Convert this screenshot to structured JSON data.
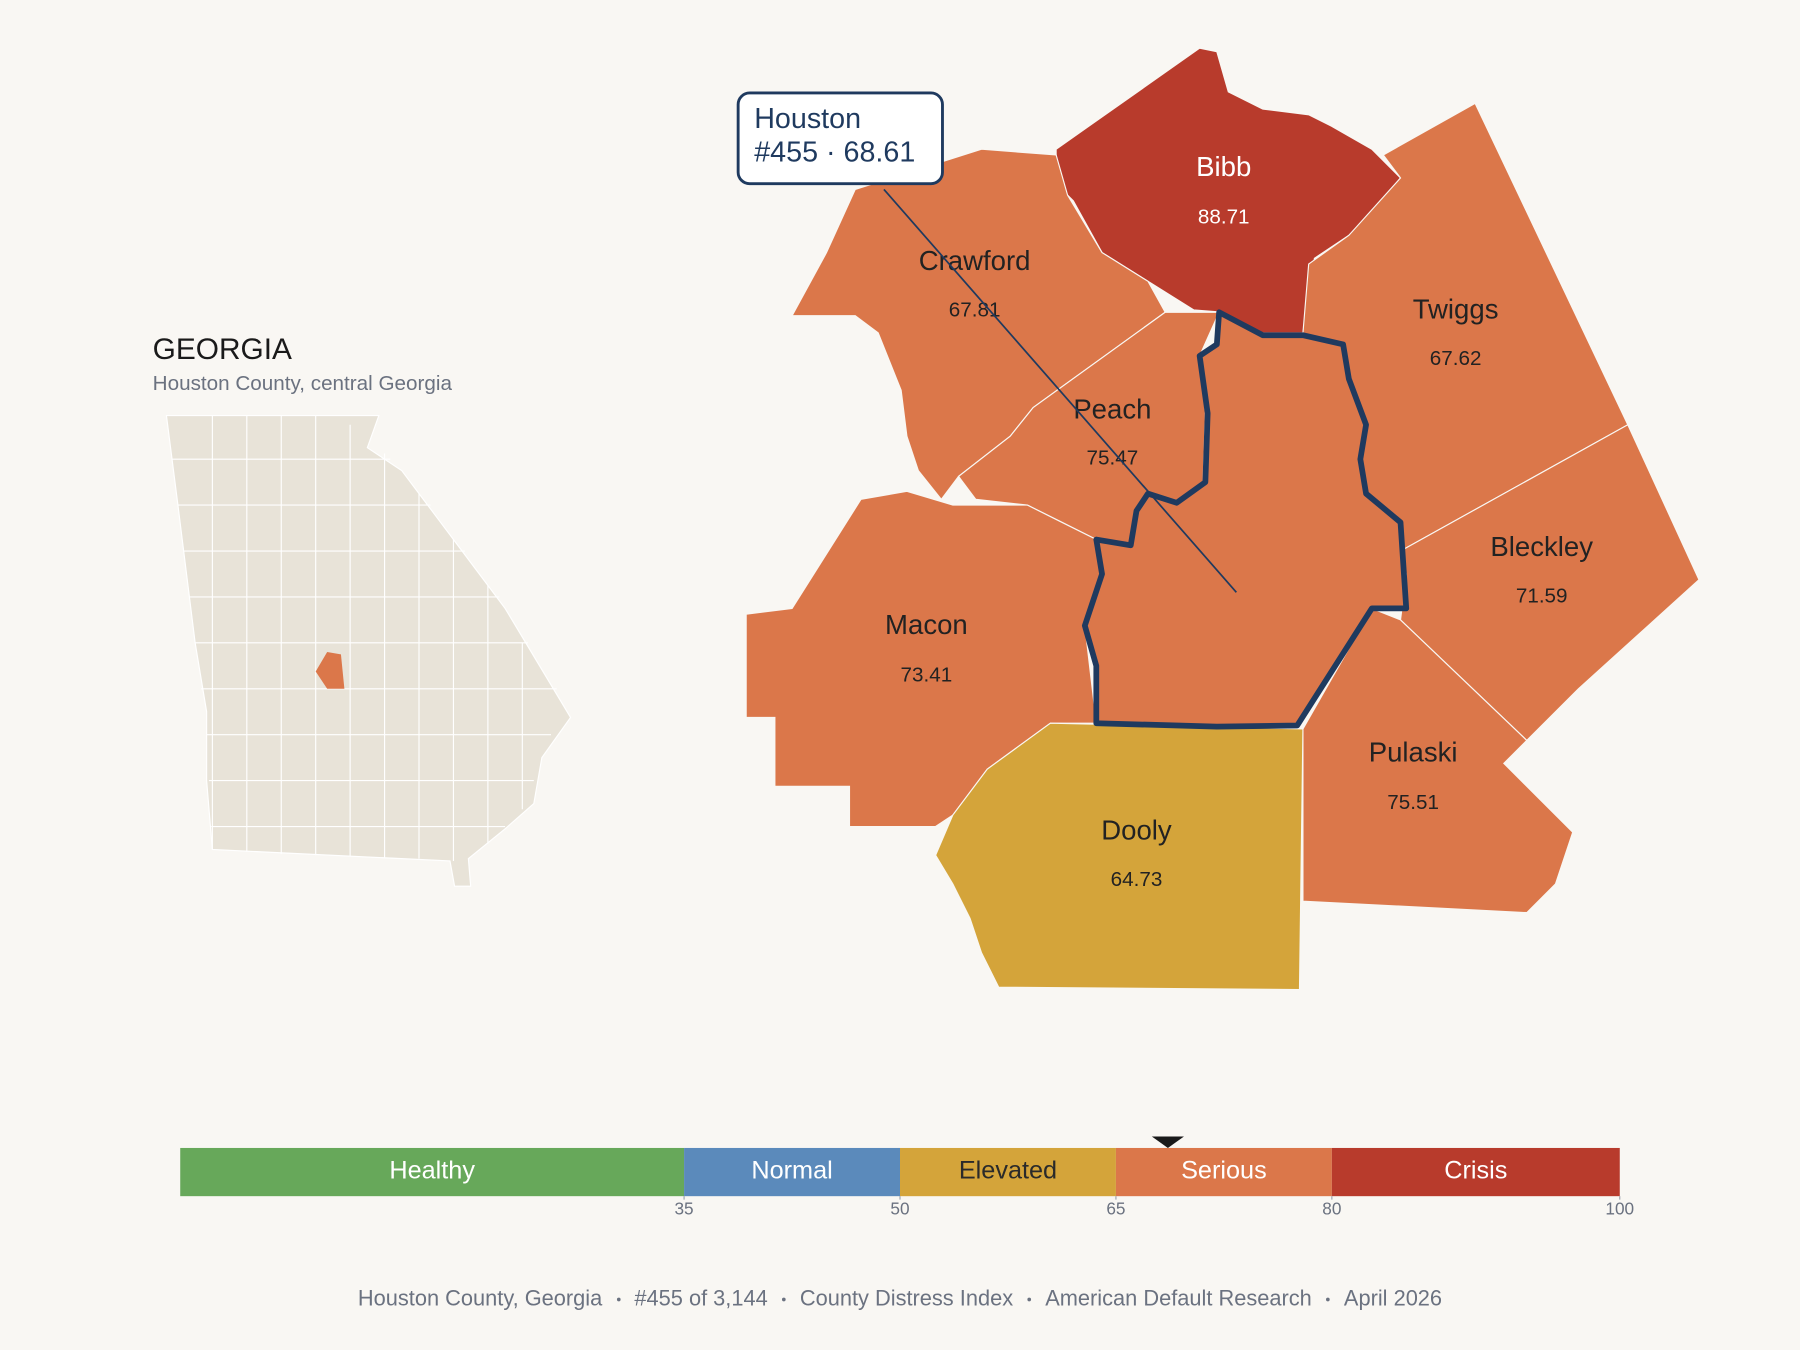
{
  "inset": {
    "title": "GEORGIA",
    "subtitle": "Houston County, central Georgia"
  },
  "highlight": {
    "name": "Houston",
    "label": "#455 · 68.61",
    "value": 68.61
  },
  "counties": [
    {
      "name": "Bibb",
      "value": 88.71
    },
    {
      "name": "Crawford",
      "value": 67.81
    },
    {
      "name": "Twiggs",
      "value": 67.62
    },
    {
      "name": "Peach",
      "value": 75.47
    },
    {
      "name": "Macon",
      "value": 73.41
    },
    {
      "name": "Bleckley",
      "value": 71.59
    },
    {
      "name": "Pulaski",
      "value": 75.51
    },
    {
      "name": "Dooly",
      "value": 64.73
    }
  ],
  "scale": {
    "xlim": [
      0,
      100
    ],
    "ticks": [
      35,
      50,
      65,
      80,
      100
    ],
    "bands": [
      {
        "name": "Healthy",
        "color": "#67a85a",
        "label_color": "#ffffff"
      },
      {
        "name": "Normal",
        "color": "#5b8abb",
        "label_color": "#ffffff"
      },
      {
        "name": "Elevated",
        "color": "#d4a43a",
        "label_color": "#2a2a2a"
      },
      {
        "name": "Serious",
        "color": "#db774a",
        "label_color": "#ffffff"
      },
      {
        "name": "Crisis",
        "color": "#b83b2c",
        "label_color": "#ffffff"
      }
    ]
  },
  "footer": [
    "Houston County, Georgia",
    "#455 of 3,144",
    "County Distress Index",
    "American Default Research",
    "April 2026"
  ]
}
